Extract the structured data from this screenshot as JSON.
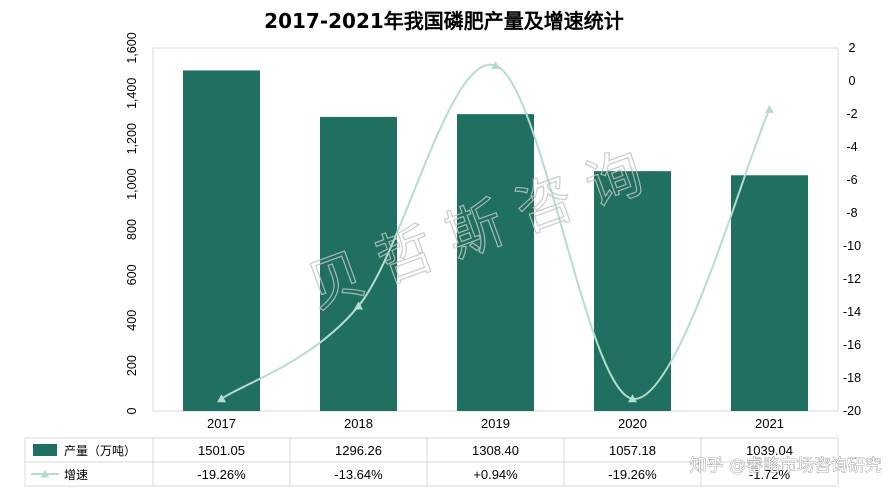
{
  "chart_data": {
    "type": "bar+line",
    "title": "2017-2021年我国磷肥产量及增速统计",
    "categories": [
      "2017",
      "2018",
      "2019",
      "2020",
      "2021"
    ],
    "series": [
      {
        "name": "产量（万吨）",
        "type": "bar",
        "axis": "left",
        "color": "#1f7060",
        "values": [
          1501.05,
          1296.26,
          1308.4,
          1057.18,
          1039.04
        ],
        "labels": [
          "1501.05",
          "1296.26",
          "1308.40",
          "1057.18",
          "1039.04"
        ]
      },
      {
        "name": "增速",
        "type": "line",
        "axis": "right",
        "color": "#b7dccf",
        "values": [
          -19.26,
          -13.64,
          0.94,
          -19.26,
          -1.72
        ],
        "labels": [
          "-19.26%",
          "-13.64%",
          "+0.94%",
          "-19.26%",
          "-1.72%"
        ]
      }
    ],
    "y_left": {
      "min": 0,
      "max": 1600,
      "step": 200,
      "tick_labels": [
        "0",
        "200",
        "400",
        "600",
        "800",
        "1,000",
        "1,200",
        "1,400",
        "1,600"
      ]
    },
    "y_right": {
      "min": -20,
      "max": 2,
      "step": 2,
      "tick_labels": [
        "-20",
        "-18",
        "-16",
        "-14",
        "-12",
        "-10",
        "-8",
        "-6",
        "-4",
        "-2",
        "0",
        "2"
      ]
    },
    "legend": "data-table",
    "grid": false
  },
  "watermark": "贝哲斯咨询",
  "source_label": "知乎 @睿略市场咨询研究"
}
